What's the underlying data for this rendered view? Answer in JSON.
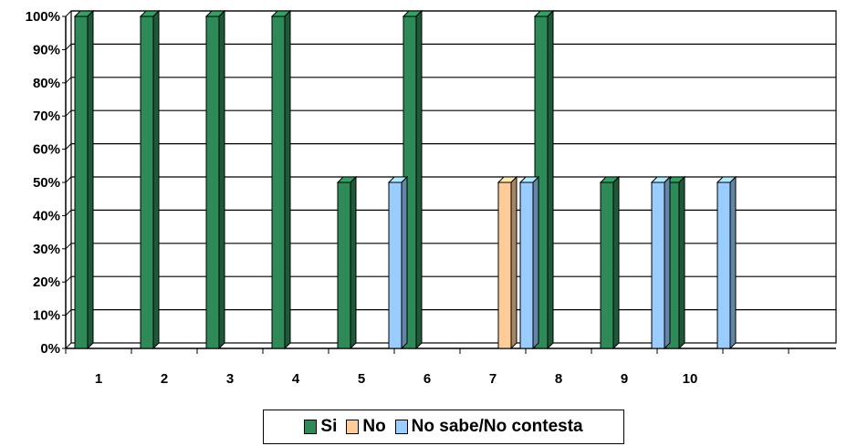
{
  "chart_data": {
    "type": "bar",
    "categories": [
      "1",
      "2",
      "3",
      "4",
      "5",
      "6",
      "7",
      "8",
      "9",
      "10"
    ],
    "series": [
      {
        "name": "Si",
        "values": [
          100,
          100,
          100,
          100,
          50,
          100,
          0,
          100,
          50,
          50
        ],
        "color": "#2e8b57"
      },
      {
        "name": "No",
        "values": [
          0,
          0,
          0,
          0,
          0,
          0,
          50,
          0,
          0,
          0
        ],
        "color": "#ffcc99"
      },
      {
        "name": "No sabe/No contesta",
        "values": [
          0,
          0,
          0,
          0,
          50,
          0,
          50,
          0,
          50,
          50
        ],
        "color": "#99ccff"
      }
    ],
    "y_ticks": [
      "0%",
      "10%",
      "20%",
      "30%",
      "40%",
      "50%",
      "60%",
      "70%",
      "80%",
      "90%",
      "100%"
    ],
    "ylim": [
      0,
      100
    ],
    "grid": true,
    "legend_position": "bottom",
    "title": "",
    "xlabel": "",
    "ylabel": ""
  }
}
